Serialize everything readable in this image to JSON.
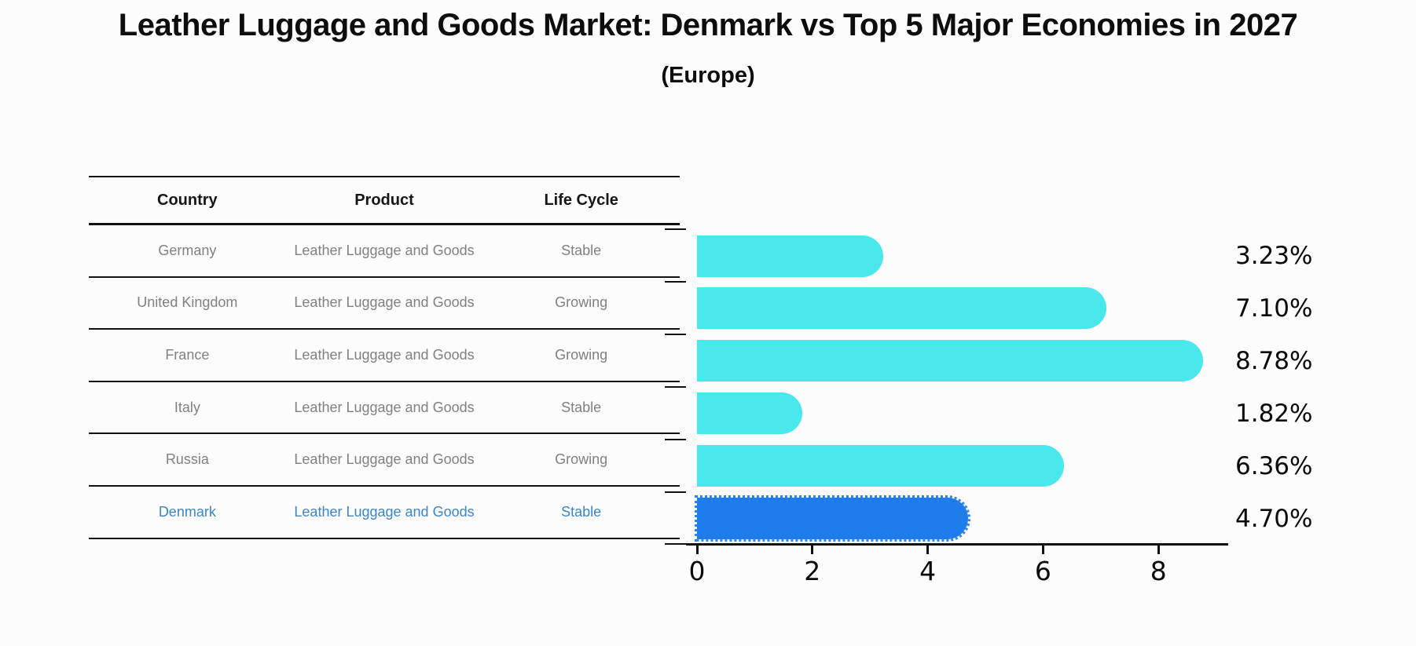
{
  "title": "Leather Luggage and Goods Market: Denmark vs Top 5 Major Economies in 2027",
  "subtitle": "(Europe)",
  "table": {
    "columns": [
      "Country",
      "Product",
      "Life Cycle"
    ],
    "rows": [
      {
        "country": "Germany",
        "product": "Leather Luggage and Goods",
        "life_cycle": "Stable",
        "highlight": false
      },
      {
        "country": "United Kingdom",
        "product": "Leather Luggage and Goods",
        "life_cycle": "Growing",
        "highlight": false
      },
      {
        "country": "France",
        "product": "Leather Luggage and Goods",
        "life_cycle": "Growing",
        "highlight": false
      },
      {
        "country": "Italy",
        "product": "Leather Luggage and Goods",
        "life_cycle": "Stable",
        "highlight": false
      },
      {
        "country": "Russia",
        "product": "Leather Luggage and Goods",
        "life_cycle": "Growing",
        "highlight": true
      },
      {
        "country": "Denmark",
        "product": "Leather Luggage and Goods",
        "life_cycle": "Stable",
        "highlight": true
      }
    ]
  },
  "chart_data": {
    "type": "bar",
    "orientation": "horizontal",
    "title": "Leather Luggage and Goods Market: Denmark vs Top 5 Major Economies in 2027 (Europe)",
    "categories": [
      "Germany",
      "United Kingdom",
      "France",
      "Italy",
      "Russia",
      "Denmark"
    ],
    "values": [
      3.23,
      7.1,
      8.78,
      1.82,
      6.36,
      4.7
    ],
    "value_labels": [
      "3.23%",
      "7.10%",
      "8.78%",
      "1.82%",
      "6.36%",
      "4.70%"
    ],
    "xlabel": "",
    "ylabel": "",
    "xlim": [
      0,
      9.4
    ],
    "xticks": [
      0,
      2,
      4,
      6,
      8
    ],
    "grid": false,
    "legend": false,
    "highlight_index": 5,
    "bar_color": "#48e8ec",
    "highlight_color": "#1e7deb"
  },
  "colors": {
    "background": "#fcfcfc",
    "bar": "#48e8ec",
    "highlight_bar": "#1e7deb",
    "highlight_text": "#3d85c6",
    "table_text": "#808080",
    "axis": "#111111"
  }
}
